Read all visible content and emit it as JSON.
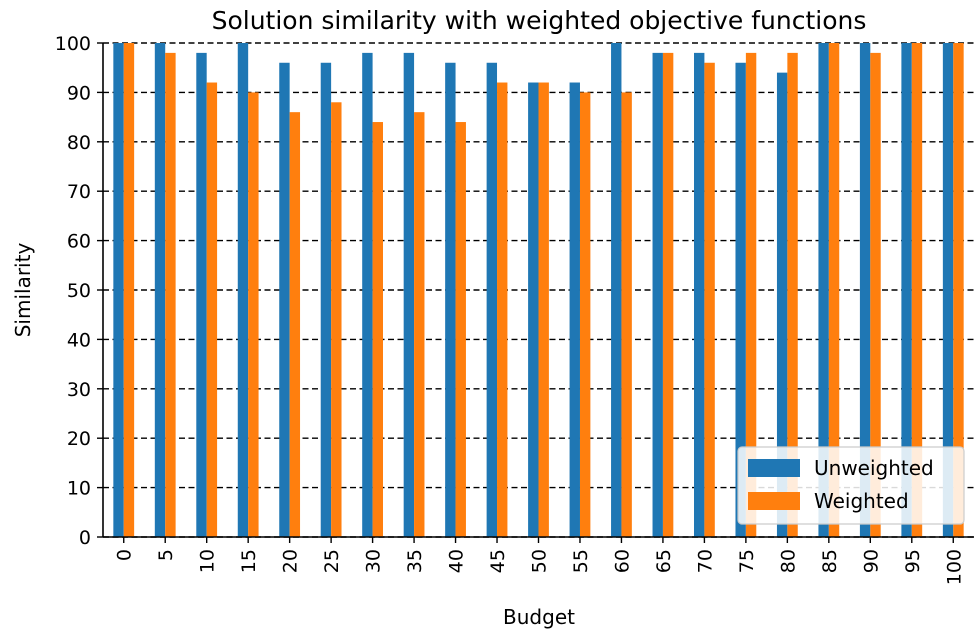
{
  "chart_data": {
    "type": "bar",
    "title": "Solution similarity with weighted objective functions",
    "xlabel": "Budget",
    "ylabel": "Similarity",
    "ylim": [
      0,
      100
    ],
    "yticks": [
      "0",
      "10",
      "20",
      "30",
      "40",
      "50",
      "60",
      "70",
      "80",
      "90",
      "100"
    ],
    "categories": [
      "0",
      "5",
      "10",
      "15",
      "20",
      "25",
      "30",
      "35",
      "40",
      "45",
      "50",
      "55",
      "60",
      "65",
      "70",
      "75",
      "80",
      "85",
      "90",
      "95",
      "100"
    ],
    "series": [
      {
        "name": "Unweighted",
        "color": "#1f77b4",
        "values": [
          100,
          100,
          98,
          100,
          96,
          96,
          98,
          98,
          96,
          96,
          92,
          92,
          100,
          98,
          98,
          96,
          94,
          100,
          100,
          100,
          100
        ]
      },
      {
        "name": "Weighted",
        "color": "#ff7f0e",
        "values": [
          100,
          98,
          92,
          90,
          86,
          88,
          84,
          86,
          84,
          92,
          92,
          90,
          90,
          98,
          96,
          98,
          98,
          100,
          98,
          100,
          100
        ]
      }
    ],
    "grid": "horizontal dashed",
    "legend_position": "bottom-right"
  }
}
